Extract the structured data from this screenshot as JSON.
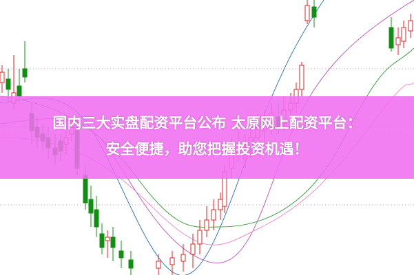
{
  "headline": {
    "line1": "国内三大实盘配资平台公布 太原网上配资平台：",
    "line2": "安全便捷，助您把握投资机遇！"
  },
  "colors": {
    "banner": "#f07ef0",
    "up_candle": "#e02020",
    "down_candle": "#109010",
    "ma_lines": [
      "#3a7ab8",
      "#c060c0",
      "#40a040",
      "#f090d0"
    ]
  }
}
